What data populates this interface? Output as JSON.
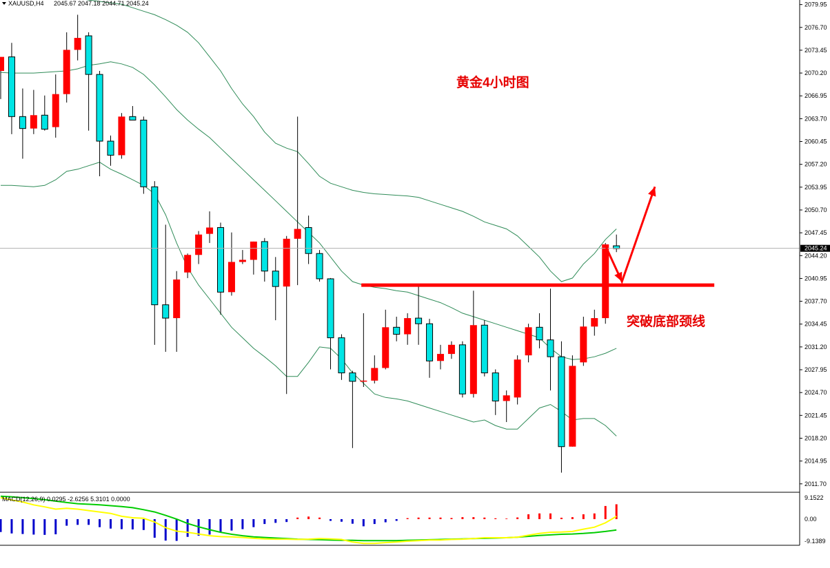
{
  "header": {
    "symbol": "XAUUSD,H4",
    "ohlc": "2045.67 2047.18 2044.71 2045.24"
  },
  "macd_header": "MACD(12,26,9) 0.0295 -2.6256 5.3101 0.0000",
  "annotations": {
    "title": "黄金4小时图",
    "neckline_label": "突破底部颈线"
  },
  "colors": {
    "bull": "#ff0000",
    "bear": "#00e5e5",
    "bear_outline": "#000000",
    "band": "#2e8b57",
    "neckline": "#ff0000",
    "arrow": "#ff0000",
    "macd_pos": "#ff0000",
    "macd_neg": "#0000cc",
    "macd_line": "#ffff00",
    "signal_line": "#00cc00",
    "price_tag_bg": "#000000"
  },
  "chart_data": {
    "type": "candlestick",
    "price_axis": {
      "min": 2010.6,
      "max": 2080.6,
      "ticks": [
        "2079.95",
        "2076.70",
        "2073.45",
        "2070.20",
        "2066.95",
        "2063.70",
        "2060.45",
        "2057.20",
        "2053.95",
        "2050.70",
        "2047.45",
        "2044.20",
        "2040.95",
        "2037.70",
        "2034.45",
        "2031.20",
        "2027.95",
        "2024.70",
        "2021.45",
        "2018.20",
        "2014.95",
        "2011.70"
      ],
      "current_price": "2045.24"
    },
    "candles": [
      {
        "o": 2070.5,
        "h": 2072.3,
        "l": 2066.5,
        "c": 2072.5
      },
      {
        "o": 2072.5,
        "h": 2074.5,
        "l": 2061.5,
        "c": 2064.0
      },
      {
        "o": 2064.0,
        "h": 2068.0,
        "l": 2058.0,
        "c": 2062.3
      },
      {
        "o": 2062.3,
        "h": 2067.8,
        "l": 2061.5,
        "c": 2064.2
      },
      {
        "o": 2064.2,
        "h": 2067.0,
        "l": 2062.0,
        "c": 2062.2
      },
      {
        "o": 2062.5,
        "h": 2070.0,
        "l": 2061.0,
        "c": 2067.2
      },
      {
        "o": 2067.2,
        "h": 2076.0,
        "l": 2066.0,
        "c": 2073.5
      },
      {
        "o": 2073.5,
        "h": 2078.5,
        "l": 2072.0,
        "c": 2075.2
      },
      {
        "o": 2075.5,
        "h": 2076.0,
        "l": 2062.0,
        "c": 2070.0
      },
      {
        "o": 2070.0,
        "h": 2070.5,
        "l": 2055.5,
        "c": 2060.5
      },
      {
        "o": 2060.5,
        "h": 2061.3,
        "l": 2057.0,
        "c": 2058.5
      },
      {
        "o": 2058.5,
        "h": 2064.5,
        "l": 2058.0,
        "c": 2064.0
      },
      {
        "o": 2064.0,
        "h": 2065.5,
        "l": 2063.5,
        "c": 2063.5
      },
      {
        "o": 2063.5,
        "h": 2064.0,
        "l": 2053.0,
        "c": 2054.0
      },
      {
        "o": 2054.0,
        "h": 2054.8,
        "l": 2031.5,
        "c": 2037.2
      },
      {
        "o": 2037.2,
        "h": 2048.6,
        "l": 2030.5,
        "c": 2035.3
      },
      {
        "o": 2035.3,
        "h": 2042.0,
        "l": 2030.5,
        "c": 2040.8
      },
      {
        "o": 2041.8,
        "h": 2044.5,
        "l": 2041.0,
        "c": 2044.3
      },
      {
        "o": 2044.3,
        "h": 2047.7,
        "l": 2043.0,
        "c": 2047.2
      },
      {
        "o": 2047.3,
        "h": 2050.5,
        "l": 2046.0,
        "c": 2048.2
      },
      {
        "o": 2048.2,
        "h": 2048.9,
        "l": 2035.8,
        "c": 2039.0
      },
      {
        "o": 2039.0,
        "h": 2047.5,
        "l": 2038.5,
        "c": 2043.3
      },
      {
        "o": 2043.3,
        "h": 2045.0,
        "l": 2043.0,
        "c": 2043.6
      },
      {
        "o": 2043.6,
        "h": 2046.2,
        "l": 2041.5,
        "c": 2046.2
      },
      {
        "o": 2046.2,
        "h": 2046.7,
        "l": 2040.5,
        "c": 2042.0
      },
      {
        "o": 2042.0,
        "h": 2044.0,
        "l": 2035.0,
        "c": 2039.8
      },
      {
        "o": 2039.8,
        "h": 2047.0,
        "l": 2024.5,
        "c": 2046.6
      },
      {
        "o": 2046.6,
        "h": 2064.0,
        "l": 2040.0,
        "c": 2048.0
      },
      {
        "o": 2048.2,
        "h": 2049.9,
        "l": 2043.0,
        "c": 2044.5
      },
      {
        "o": 2044.5,
        "h": 2045.0,
        "l": 2040.5,
        "c": 2040.9
      },
      {
        "o": 2040.9,
        "h": 2041.0,
        "l": 2028.0,
        "c": 2032.5
      },
      {
        "o": 2032.5,
        "h": 2033.0,
        "l": 2026.5,
        "c": 2027.5
      },
      {
        "o": 2027.5,
        "h": 2027.8,
        "l": 2016.8,
        "c": 2026.3
      },
      {
        "o": 2026.3,
        "h": 2036.0,
        "l": 2025.5,
        "c": 2026.4
      },
      {
        "o": 2026.4,
        "h": 2030.0,
        "l": 2026.0,
        "c": 2028.2
      },
      {
        "o": 2028.2,
        "h": 2036.5,
        "l": 2028.0,
        "c": 2034.0
      },
      {
        "o": 2034.0,
        "h": 2035.5,
        "l": 2032.0,
        "c": 2033.0
      },
      {
        "o": 2033.0,
        "h": 2036.0,
        "l": 2031.5,
        "c": 2035.3
      },
      {
        "o": 2035.3,
        "h": 2040.2,
        "l": 2031.5,
        "c": 2034.5
      },
      {
        "o": 2034.5,
        "h": 2035.2,
        "l": 2026.8,
        "c": 2029.2
      },
      {
        "o": 2029.2,
        "h": 2031.5,
        "l": 2028.0,
        "c": 2030.2
      },
      {
        "o": 2030.2,
        "h": 2032.0,
        "l": 2029.5,
        "c": 2031.5
      },
      {
        "o": 2031.5,
        "h": 2032.0,
        "l": 2024.0,
        "c": 2024.5
      },
      {
        "o": 2024.5,
        "h": 2039.2,
        "l": 2024.0,
        "c": 2034.3
      },
      {
        "o": 2034.3,
        "h": 2035.0,
        "l": 2027.0,
        "c": 2027.5
      },
      {
        "o": 2027.5,
        "h": 2028.0,
        "l": 2021.5,
        "c": 2023.5
      },
      {
        "o": 2023.5,
        "h": 2025.0,
        "l": 2020.5,
        "c": 2024.3
      },
      {
        "o": 2024.0,
        "h": 2030.0,
        "l": 2023.0,
        "c": 2029.4
      },
      {
        "o": 2030.0,
        "h": 2034.5,
        "l": 2029.0,
        "c": 2034.0
      },
      {
        "o": 2034.0,
        "h": 2036.0,
        "l": 2031.0,
        "c": 2032.2
      },
      {
        "o": 2032.2,
        "h": 2039.5,
        "l": 2025.0,
        "c": 2029.8
      },
      {
        "o": 2029.8,
        "h": 2032.0,
        "l": 2013.3,
        "c": 2017.0
      },
      {
        "o": 2017.0,
        "h": 2030.0,
        "l": 2017.0,
        "c": 2028.5
      },
      {
        "o": 2029.0,
        "h": 2035.5,
        "l": 2028.5,
        "c": 2034.1
      },
      {
        "o": 2034.1,
        "h": 2036.5,
        "l": 2032.8,
        "c": 2035.3
      },
      {
        "o": 2035.3,
        "h": 2046.0,
        "l": 2034.5,
        "c": 2045.8
      },
      {
        "o": 2045.6,
        "h": 2047.2,
        "l": 2044.7,
        "c": 2045.2
      }
    ],
    "bollinger_upper": [
      2083.5,
      2083.0,
      2082.5,
      2082.0,
      2081.6,
      2081.3,
      2081.0,
      2080.8,
      2080.6,
      2080.4,
      2080.2,
      2080.0,
      2079.5,
      2079.0,
      2078.5,
      2077.8,
      2077.0,
      2076.0,
      2074.5,
      2072.5,
      2070.5,
      2068.0,
      2065.8,
      2064.0,
      2061.8,
      2060.2,
      2059.5,
      2059.0,
      2057.3,
      2055.5,
      2054.5,
      2054.0,
      2053.5,
      2053.2,
      2053.0,
      2052.9,
      2052.8,
      2052.7,
      2052.5,
      2052.0,
      2051.5,
      2051.0,
      2050.5,
      2049.8,
      2049.0,
      2048.5,
      2048.0,
      2047.0,
      2045.5,
      2044.0,
      2042.0,
      2040.5,
      2041.0,
      2043.0,
      2044.5,
      2046.5,
      2048.0
    ],
    "bollinger_mid": [
      2070.3,
      2070.2,
      2070.2,
      2070.2,
      2070.3,
      2070.4,
      2070.5,
      2070.8,
      2071.3,
      2071.5,
      2071.8,
      2071.5,
      2071.0,
      2070.0,
      2068.5,
      2066.8,
      2065.0,
      2063.5,
      2062.2,
      2061.0,
      2059.5,
      2058.0,
      2056.5,
      2055.0,
      2053.5,
      2052.0,
      2050.5,
      2049.0,
      2047.5,
      2046.0,
      2044.0,
      2042.0,
      2040.5,
      2040.0,
      2039.7,
      2039.5,
      2039.2,
      2039.0,
      2038.5,
      2038.0,
      2037.5,
      2036.8,
      2036.0,
      2035.5,
      2035.0,
      2034.5,
      2034.0,
      2033.5,
      2033.0,
      2032.5,
      2031.0,
      2029.8,
      2029.4,
      2029.5,
      2029.8,
      2030.3,
      2031.0
    ],
    "bollinger_lower": [
      2054.2,
      2054.2,
      2054.1,
      2054.0,
      2054.2,
      2055.0,
      2056.2,
      2056.5,
      2057.0,
      2057.5,
      2056.5,
      2055.8,
      2055.0,
      2054.2,
      2053.0,
      2050.0,
      2046.0,
      2042.5,
      2040.0,
      2038.0,
      2036.0,
      2034.0,
      2032.5,
      2031.0,
      2029.8,
      2028.5,
      2027.0,
      2027.0,
      2029.0,
      2031.2,
      2031.0,
      2029.5,
      2027.5,
      2026.0,
      2024.5,
      2024.0,
      2023.8,
      2023.5,
      2023.0,
      2022.5,
      2022.0,
      2021.5,
      2021.0,
      2020.5,
      2020.8,
      2020.0,
      2019.5,
      2019.5,
      2021.0,
      2022.5,
      2023.0,
      2022.0,
      2020.8,
      2021.0,
      2021.0,
      2020.0,
      2018.5
    ],
    "neckline": 2040.0,
    "forecast_arrow": [
      {
        "i": 55,
        "p": 2045.6
      },
      {
        "i": 56.5,
        "p": 2040.5
      },
      {
        "i": 59.5,
        "p": 2054.0
      }
    ],
    "macd": {
      "ylim": [
        -9.1389,
        9.1522
      ],
      "ticks": [
        "9.1522",
        "0.00",
        "-9.1389"
      ],
      "histogram": [
        -4.5,
        -5.0,
        -5.2,
        -5.4,
        -5.5,
        -5.3,
        -2.3,
        -2.0,
        -2.0,
        -2.8,
        -3.3,
        -3.5,
        -3.6,
        -3.8,
        -6.5,
        -7.5,
        -7.6,
        -6.2,
        -5.8,
        -5.4,
        -4.6,
        -4.0,
        -3.5,
        -2.8,
        -1.7,
        -1.3,
        -1.0,
        0.55,
        0.9,
        0.55,
        -0.6,
        -0.9,
        -1.6,
        -2.5,
        -1.7,
        -1.1,
        -0.6,
        0.35,
        0.55,
        0.55,
        0.55,
        0.4,
        0.7,
        0.7,
        0.55,
        0.3,
        0.2,
        0.6,
        1.7,
        2.0,
        2.0,
        0.5,
        0.7,
        1.7,
        2.0,
        4.6,
        5.2
      ],
      "macd_line": [
        7.5,
        6.7,
        6.0,
        5.0,
        4.3,
        3.5,
        3.8,
        3.5,
        3.0,
        2.5,
        2.0,
        1.0,
        0.5,
        0.3,
        -1.0,
        -3.0,
        -4.2,
        -4.6,
        -5.2,
        -5.8,
        -6.1,
        -6.2,
        -6.4,
        -6.7,
        -6.9,
        -7.0,
        -7.0,
        -7.1,
        -7.0,
        -6.8,
        -6.9,
        -7.1,
        -8.0,
        -8.5,
        -8.5,
        -8.2,
        -8.0,
        -7.7,
        -7.5,
        -7.3,
        -7.3,
        -7.1,
        -7.0,
        -6.8,
        -6.5,
        -6.5,
        -6.5,
        -6.3,
        -5.6,
        -5.0,
        -4.6,
        -4.5,
        -4.3,
        -3.5,
        -2.8,
        -1.3,
        1.0
      ],
      "signal_line": [
        8.0,
        7.8,
        7.5,
        7.2,
        6.8,
        6.3,
        5.8,
        5.4,
        5.2,
        5.0,
        4.7,
        4.4,
        4.0,
        3.3,
        2.5,
        1.3,
        0.0,
        -1.5,
        -2.7,
        -3.7,
        -4.6,
        -5.3,
        -5.8,
        -6.2,
        -6.4,
        -6.6,
        -6.8,
        -7.0,
        -7.1,
        -7.2,
        -7.3,
        -7.4,
        -7.4,
        -7.5,
        -7.5,
        -7.5,
        -7.5,
        -7.4,
        -7.3,
        -7.2,
        -7.1,
        -7.0,
        -6.9,
        -6.8,
        -6.7,
        -6.6,
        -6.5,
        -6.3,
        -6.0,
        -5.7,
        -5.5,
        -5.3,
        -5.2,
        -5.0,
        -4.7,
        -4.3,
        -3.8
      ]
    }
  }
}
